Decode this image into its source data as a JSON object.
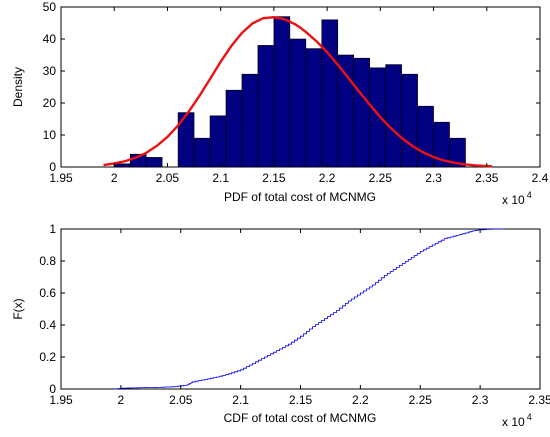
{
  "chart_data": [
    {
      "type": "bar",
      "subtype": "histogram",
      "xlabel": "PDF of total cost of MCNMG",
      "ylabel": "Density",
      "exponent_base": "x 10",
      "exponent_power": "4",
      "xlim": [
        19500,
        24000
      ],
      "ylim": [
        0,
        50
      ],
      "xticks": [
        19500,
        20000,
        20500,
        21000,
        21500,
        22000,
        22500,
        23000,
        23500,
        24000
      ],
      "xtick_labels": [
        "1.95",
        "2",
        "2.05",
        "2.1",
        "2.15",
        "2.2",
        "2.25",
        "2.3",
        "2.35",
        "2.4"
      ],
      "yticks": [
        0,
        10,
        20,
        30,
        40,
        50
      ],
      "ytick_labels": [
        "0",
        "10",
        "20",
        "30",
        "40",
        "50"
      ],
      "bin_width": 150,
      "bin_starts": [
        20000,
        20150,
        20300,
        20450,
        20600,
        20750,
        20900,
        21050,
        21200,
        21350,
        21500,
        21650,
        21800,
        21950,
        22100,
        22250,
        22400,
        22550,
        22700,
        22850,
        23000,
        23150
      ],
      "values": [
        1,
        4,
        3,
        0,
        17,
        9,
        16,
        24,
        29,
        38,
        47,
        40,
        37,
        46,
        35,
        34,
        31,
        32,
        29,
        19,
        14,
        9
      ],
      "bar_color": "#000080",
      "bar_edge_color": "#000000",
      "fit_curve": {
        "name": "normal fit",
        "color": "#ee1111",
        "x": [
          19900,
          20000,
          20100,
          20200,
          20300,
          20400,
          20500,
          20600,
          20700,
          20800,
          20900,
          21000,
          21100,
          21200,
          21300,
          21400,
          21500,
          21600,
          21700,
          21750,
          21800,
          21900,
          22000,
          22100,
          22200,
          22300,
          22400,
          22500,
          22600,
          22700,
          22800,
          22900,
          23000,
          23100,
          23200,
          23300,
          23400,
          23550
        ],
        "y": [
          0.6,
          1.1,
          1.8,
          2.9,
          4.4,
          6.6,
          9.4,
          13,
          17.3,
          22.2,
          27.5,
          32.9,
          37.8,
          41.9,
          44.9,
          46.5,
          46.8,
          46.2,
          44.6,
          43.5,
          42.2,
          39.3,
          35.9,
          32.0,
          27.8,
          23.6,
          19.5,
          15.6,
          12.1,
          9.1,
          6.6,
          4.6,
          3.1,
          2.0,
          1.3,
          0.8,
          0.5,
          0.2
        ]
      },
      "grid": false
    },
    {
      "type": "line",
      "subtype": "empirical cdf",
      "xlabel": "CDF of total cost of MCNMG",
      "ylabel": "F(x)",
      "exponent_base": "x 10",
      "exponent_power": "4",
      "xlim": [
        19500,
        23500
      ],
      "ylim": [
        0,
        1
      ],
      "xticks": [
        19500,
        20000,
        20500,
        21000,
        21500,
        22000,
        22500,
        23000,
        23500
      ],
      "xtick_labels": [
        "1.95",
        "2",
        "2.05",
        "2.1",
        "2.15",
        "2.2",
        "2.25",
        "2.3",
        "2.35"
      ],
      "yticks": [
        0,
        0.2,
        0.4,
        0.6,
        0.8,
        1
      ],
      "ytick_labels": [
        "0",
        "0.2",
        "0.4",
        "0.6",
        "0.8",
        "1"
      ],
      "line_color": "#0000ff",
      "x": [
        19950,
        20000,
        20100,
        20200,
        20300,
        20450,
        20550,
        20600,
        20700,
        20800,
        20900,
        21000,
        21100,
        21200,
        21300,
        21400,
        21500,
        21600,
        21700,
        21800,
        21900,
        22000,
        22100,
        22200,
        22300,
        22400,
        22500,
        22600,
        22700,
        22800,
        22900,
        22950,
        23000,
        23100,
        23200
      ],
      "y": [
        0,
        0.005,
        0.007,
        0.009,
        0.01,
        0.015,
        0.025,
        0.045,
        0.06,
        0.075,
        0.095,
        0.12,
        0.16,
        0.2,
        0.24,
        0.28,
        0.33,
        0.39,
        0.44,
        0.49,
        0.55,
        0.6,
        0.65,
        0.71,
        0.76,
        0.81,
        0.86,
        0.9,
        0.94,
        0.96,
        0.98,
        0.99,
        0.995,
        1,
        1
      ],
      "grid": false
    }
  ]
}
